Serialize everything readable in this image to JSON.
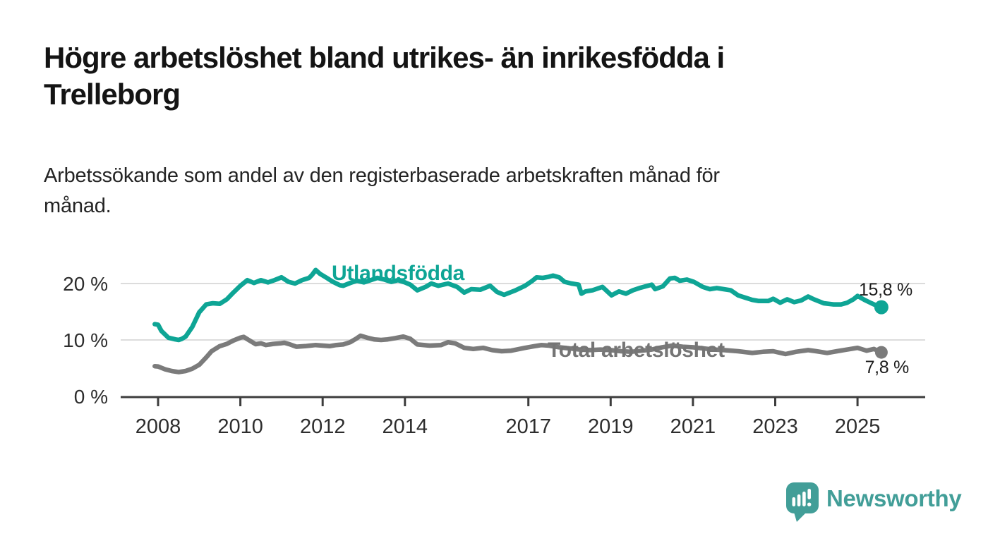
{
  "header": {
    "title_line1": "Högre arbetslöshet bland utrikes- än inrikesfödda i",
    "title_line2": "Trelleborg",
    "subtitle_line1": "Arbetssökande som andel av den registerbaserade arbetskraften månad för",
    "subtitle_line2": "månad."
  },
  "chart_data": {
    "type": "line",
    "title": "Högre arbetslöshet bland utrikes- än inrikesfödda i Trelleborg",
    "subtitle": "Arbetssökande som andel av den registerbaserade arbetskraften månad för månad.",
    "xlabel": "",
    "ylabel": "",
    "grid": "horizontal",
    "x_axis": {
      "unit": "year",
      "ticks": [
        2008,
        2010,
        2012,
        2014,
        2017,
        2019,
        2021,
        2023,
        2025
      ],
      "range": [
        2007.9,
        2026.6
      ]
    },
    "y_axis": {
      "unit": "%",
      "range": [
        0,
        23
      ],
      "ticks": [
        {
          "value": 0,
          "label": "0 %"
        },
        {
          "value": 10,
          "label": "10 %"
        },
        {
          "value": 20,
          "label": "20 %"
        }
      ]
    },
    "colors": {
      "accent_teal": "#0ea595",
      "neutral_gray": "#7b7b7b",
      "gridline": "#dcdcdc",
      "axis": "#3d3d3d"
    },
    "series": [
      {
        "name": "Utlandsfödda",
        "color": "#0ea595",
        "label_color": "#0ea595",
        "end_label": "15,8 %",
        "end_value": 15.8,
        "points": [
          [
            2007.92,
            12.8
          ],
          [
            2008.0,
            12.7
          ],
          [
            2008.08,
            11.6
          ],
          [
            2008.25,
            10.4
          ],
          [
            2008.42,
            10.1
          ],
          [
            2008.5,
            10.0
          ],
          [
            2008.58,
            10.2
          ],
          [
            2008.67,
            10.6
          ],
          [
            2008.83,
            12.3
          ],
          [
            2009.0,
            14.9
          ],
          [
            2009.17,
            16.3
          ],
          [
            2009.33,
            16.5
          ],
          [
            2009.5,
            16.4
          ],
          [
            2009.67,
            17.2
          ],
          [
            2009.83,
            18.4
          ],
          [
            2010.0,
            19.6
          ],
          [
            2010.17,
            20.6
          ],
          [
            2010.33,
            20.1
          ],
          [
            2010.5,
            20.6
          ],
          [
            2010.67,
            20.2
          ],
          [
            2010.83,
            20.6
          ],
          [
            2011.0,
            21.1
          ],
          [
            2011.17,
            20.3
          ],
          [
            2011.33,
            20.0
          ],
          [
            2011.5,
            20.6
          ],
          [
            2011.67,
            21.0
          ],
          [
            2011.75,
            21.6
          ],
          [
            2011.83,
            22.4
          ],
          [
            2011.94,
            21.7
          ],
          [
            2012.1,
            21.0
          ],
          [
            2012.25,
            20.3
          ],
          [
            2012.42,
            19.7
          ],
          [
            2012.5,
            19.6
          ],
          [
            2012.67,
            20.1
          ],
          [
            2012.83,
            20.5
          ],
          [
            2013.0,
            20.2
          ],
          [
            2013.17,
            20.6
          ],
          [
            2013.33,
            21.0
          ],
          [
            2013.5,
            20.7
          ],
          [
            2013.67,
            20.3
          ],
          [
            2013.83,
            20.6
          ],
          [
            2014.0,
            20.2
          ],
          [
            2014.13,
            19.8
          ],
          [
            2014.3,
            18.8
          ],
          [
            2014.5,
            19.4
          ],
          [
            2014.64,
            20.0
          ],
          [
            2014.81,
            19.6
          ],
          [
            2015.05,
            20.0
          ],
          [
            2015.27,
            19.4
          ],
          [
            2015.44,
            18.4
          ],
          [
            2015.61,
            19.0
          ],
          [
            2015.83,
            18.9
          ],
          [
            2016.07,
            19.6
          ],
          [
            2016.24,
            18.5
          ],
          [
            2016.41,
            18.0
          ],
          [
            2016.69,
            18.8
          ],
          [
            2016.92,
            19.6
          ],
          [
            2017.1,
            20.5
          ],
          [
            2017.2,
            21.1
          ],
          [
            2017.35,
            21.0
          ],
          [
            2017.5,
            21.2
          ],
          [
            2017.6,
            21.4
          ],
          [
            2017.75,
            21.1
          ],
          [
            2017.88,
            20.3
          ],
          [
            2018.05,
            20.0
          ],
          [
            2018.22,
            19.8
          ],
          [
            2018.29,
            18.2
          ],
          [
            2018.39,
            18.6
          ],
          [
            2018.56,
            18.8
          ],
          [
            2018.8,
            19.4
          ],
          [
            2019.02,
            17.9
          ],
          [
            2019.2,
            18.6
          ],
          [
            2019.37,
            18.2
          ],
          [
            2019.54,
            18.8
          ],
          [
            2019.7,
            19.2
          ],
          [
            2020.0,
            19.8
          ],
          [
            2020.08,
            19.0
          ],
          [
            2020.27,
            19.5
          ],
          [
            2020.44,
            20.9
          ],
          [
            2020.56,
            21.0
          ],
          [
            2020.68,
            20.5
          ],
          [
            2020.85,
            20.7
          ],
          [
            2021.02,
            20.3
          ],
          [
            2021.24,
            19.4
          ],
          [
            2021.41,
            19.0
          ],
          [
            2021.58,
            19.2
          ],
          [
            2021.75,
            19.0
          ],
          [
            2021.92,
            18.8
          ],
          [
            2022.1,
            17.9
          ],
          [
            2022.27,
            17.5
          ],
          [
            2022.44,
            17.1
          ],
          [
            2022.6,
            16.9
          ],
          [
            2022.83,
            16.9
          ],
          [
            2022.95,
            17.3
          ],
          [
            2023.12,
            16.6
          ],
          [
            2023.29,
            17.2
          ],
          [
            2023.46,
            16.7
          ],
          [
            2023.63,
            17.0
          ],
          [
            2023.8,
            17.7
          ],
          [
            2023.94,
            17.2
          ],
          [
            2024.18,
            16.5
          ],
          [
            2024.42,
            16.3
          ],
          [
            2024.6,
            16.3
          ],
          [
            2024.75,
            16.6
          ],
          [
            2024.9,
            17.2
          ],
          [
            2025.0,
            17.8
          ],
          [
            2025.17,
            17.1
          ],
          [
            2025.34,
            16.5
          ],
          [
            2025.46,
            16.1
          ],
          [
            2025.58,
            15.8
          ]
        ]
      },
      {
        "name": "Total arbetslöshet",
        "color": "#7b7b7b",
        "label_color": "#757575",
        "end_label": "7,8 %",
        "end_value": 7.8,
        "points": [
          [
            2007.92,
            5.35
          ],
          [
            2008.0,
            5.3
          ],
          [
            2008.17,
            4.8
          ],
          [
            2008.33,
            4.5
          ],
          [
            2008.5,
            4.3
          ],
          [
            2008.67,
            4.5
          ],
          [
            2008.83,
            4.9
          ],
          [
            2009.0,
            5.6
          ],
          [
            2009.17,
            6.9
          ],
          [
            2009.3,
            8.0
          ],
          [
            2009.5,
            8.9
          ],
          [
            2009.67,
            9.3
          ],
          [
            2009.83,
            9.9
          ],
          [
            2010.0,
            10.4
          ],
          [
            2010.08,
            10.55
          ],
          [
            2010.2,
            10.0
          ],
          [
            2010.37,
            9.25
          ],
          [
            2010.5,
            9.4
          ],
          [
            2010.62,
            9.1
          ],
          [
            2010.8,
            9.3
          ],
          [
            2010.97,
            9.4
          ],
          [
            2011.07,
            9.5
          ],
          [
            2011.19,
            9.25
          ],
          [
            2011.36,
            8.8
          ],
          [
            2011.57,
            8.9
          ],
          [
            2011.7,
            9.0
          ],
          [
            2011.83,
            9.1
          ],
          [
            2012.0,
            9.0
          ],
          [
            2012.17,
            8.9
          ],
          [
            2012.33,
            9.1
          ],
          [
            2012.5,
            9.2
          ],
          [
            2012.67,
            9.6
          ],
          [
            2012.83,
            10.3
          ],
          [
            2012.92,
            10.75
          ],
          [
            2013.08,
            10.4
          ],
          [
            2013.25,
            10.1
          ],
          [
            2013.42,
            10.0
          ],
          [
            2013.58,
            10.1
          ],
          [
            2013.75,
            10.3
          ],
          [
            2013.96,
            10.6
          ],
          [
            2014.13,
            10.2
          ],
          [
            2014.3,
            9.2
          ],
          [
            2014.6,
            9.0
          ],
          [
            2014.88,
            9.1
          ],
          [
            2015.05,
            9.6
          ],
          [
            2015.22,
            9.4
          ],
          [
            2015.44,
            8.6
          ],
          [
            2015.66,
            8.4
          ],
          [
            2015.9,
            8.6
          ],
          [
            2016.12,
            8.2
          ],
          [
            2016.35,
            8.0
          ],
          [
            2016.58,
            8.1
          ],
          [
            2016.92,
            8.6
          ],
          [
            2017.15,
            8.9
          ],
          [
            2017.32,
            9.1
          ],
          [
            2017.5,
            9.0
          ],
          [
            2017.75,
            8.7
          ],
          [
            2018.0,
            8.5
          ],
          [
            2018.25,
            8.3
          ],
          [
            2018.5,
            8.2
          ],
          [
            2018.75,
            8.3
          ],
          [
            2019.0,
            8.2
          ],
          [
            2019.25,
            8.0
          ],
          [
            2019.5,
            7.9
          ],
          [
            2019.75,
            8.1
          ],
          [
            2020.0,
            8.3
          ],
          [
            2020.25,
            8.7
          ],
          [
            2020.5,
            9.0
          ],
          [
            2020.75,
            8.8
          ],
          [
            2021.0,
            8.7
          ],
          [
            2021.25,
            8.5
          ],
          [
            2021.5,
            8.3
          ],
          [
            2021.75,
            8.2
          ],
          [
            2022.1,
            8.0
          ],
          [
            2022.44,
            7.7
          ],
          [
            2022.7,
            7.9
          ],
          [
            2022.95,
            8.0
          ],
          [
            2023.25,
            7.5
          ],
          [
            2023.5,
            7.9
          ],
          [
            2023.8,
            8.2
          ],
          [
            2024.0,
            8.0
          ],
          [
            2024.26,
            7.7
          ],
          [
            2024.5,
            8.0
          ],
          [
            2024.66,
            8.2
          ],
          [
            2025.0,
            8.6
          ],
          [
            2025.22,
            8.1
          ],
          [
            2025.4,
            8.4
          ],
          [
            2025.58,
            7.8
          ]
        ]
      }
    ]
  },
  "branding": {
    "logo_text": "Newsworthy",
    "logo_color": "#429e98",
    "logo_icon": "bar-chart-speech-bubble-icon"
  }
}
